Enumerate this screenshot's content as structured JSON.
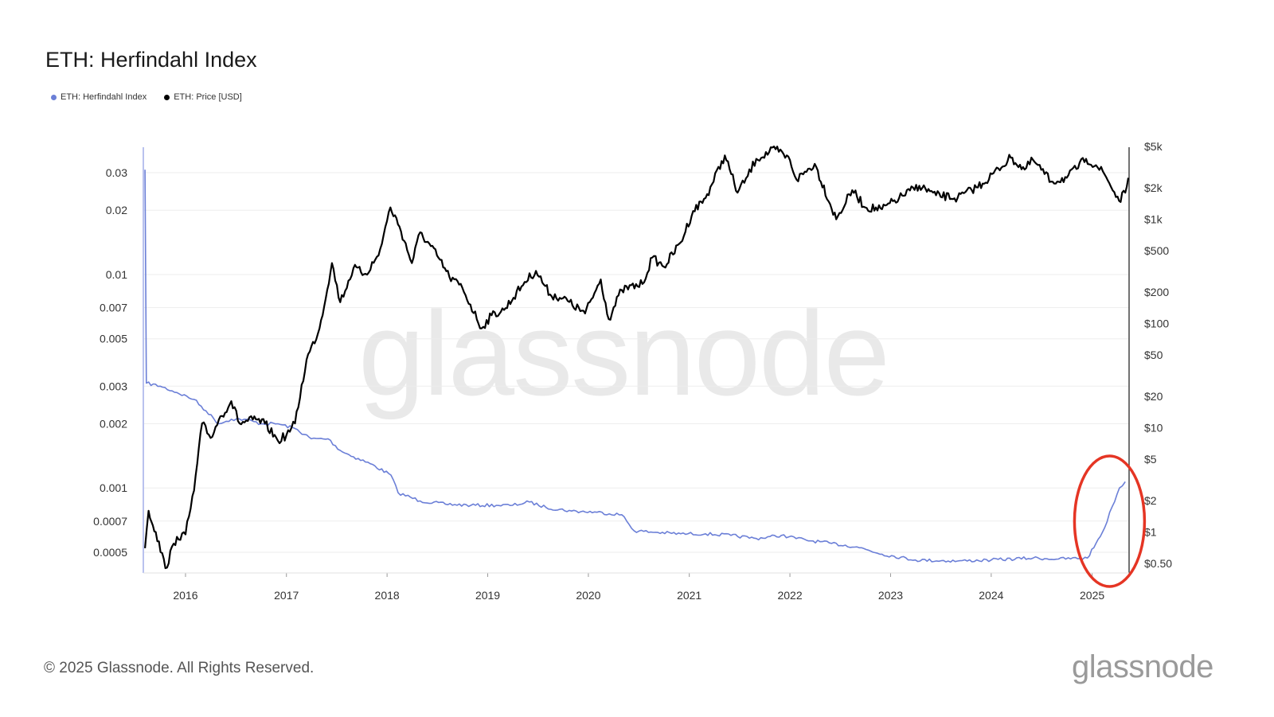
{
  "header": {
    "title": "ETH: Herfindahl Index"
  },
  "watermark": "glassnode",
  "footer": {
    "copyright": "© 2025 Glassnode. All Rights Reserved.",
    "logo": "glassnode"
  },
  "colors": {
    "index": "#6b7fd7",
    "price": "#000000",
    "annotation": "#e53524",
    "axis": "#333333",
    "grid": "#eeeeee"
  },
  "chart_data": {
    "type": "line",
    "title": "ETH: Herfindahl Index",
    "legend_placement": "top-left",
    "grid": true,
    "x_ticks": [
      "2016",
      "2017",
      "2018",
      "2019",
      "2020",
      "2021",
      "2022",
      "2023",
      "2024",
      "2025"
    ],
    "xlim": [
      "2015-08-01",
      "2025-05-15"
    ],
    "y_left": {
      "scale": "log",
      "ticks": [
        0.03,
        0.02,
        0.01,
        0.007,
        0.005,
        0.003,
        0.002,
        0.001,
        0.0007,
        0.0005
      ],
      "tick_labels": [
        "0.03",
        "0.02",
        "0.01",
        "0.007",
        "0.005",
        "0.003",
        "0.002",
        "0.001",
        "0.0007",
        "0.0005"
      ]
    },
    "y_right": {
      "scale": "log",
      "ticks": [
        5000,
        2000,
        1000,
        500,
        200,
        100,
        50,
        20,
        10,
        5,
        2,
        1,
        0.5
      ],
      "tick_labels": [
        "$5k",
        "$2k",
        "$1k",
        "$500",
        "$200",
        "$100",
        "$50",
        "$20",
        "$10",
        "$5",
        "$2",
        "$1",
        "$0.50"
      ]
    },
    "annotation": {
      "shape": "ellipse",
      "color": "#e53524",
      "around": "Herfindahl Index rise in 2025"
    },
    "series": [
      {
        "name": "ETH: Herfindahl Index",
        "axis": "left",
        "color": "#6b7fd7",
        "points": [
          [
            "2015-08-07",
            0.031
          ],
          [
            "2015-08-12",
            0.0031
          ],
          [
            "2015-10-01",
            0.003
          ],
          [
            "2015-12-01",
            0.0028
          ],
          [
            "2016-02-01",
            0.0026
          ],
          [
            "2016-03-15",
            0.0023
          ],
          [
            "2016-05-01",
            0.002
          ],
          [
            "2016-06-15",
            0.0021
          ],
          [
            "2016-08-01",
            0.0021
          ],
          [
            "2016-10-01",
            0.002
          ],
          [
            "2016-12-01",
            0.002
          ],
          [
            "2017-02-01",
            0.0019
          ],
          [
            "2017-04-01",
            0.0017
          ],
          [
            "2017-06-01",
            0.0017
          ],
          [
            "2017-07-15",
            0.0015
          ],
          [
            "2017-09-01",
            0.0014
          ],
          [
            "2017-11-01",
            0.0013
          ],
          [
            "2018-01-15",
            0.00115
          ],
          [
            "2018-02-10",
            0.00095
          ],
          [
            "2018-05-01",
            0.00087
          ],
          [
            "2018-08-01",
            0.00084
          ],
          [
            "2018-11-01",
            0.00083
          ],
          [
            "2019-02-01",
            0.00083
          ],
          [
            "2019-04-01",
            0.00083
          ],
          [
            "2019-06-01",
            0.00086
          ],
          [
            "2019-08-01",
            0.00081
          ],
          [
            "2019-11-01",
            0.00078
          ],
          [
            "2020-02-01",
            0.00077
          ],
          [
            "2020-05-01",
            0.00075
          ],
          [
            "2020-06-15",
            0.00063
          ],
          [
            "2020-09-01",
            0.00062
          ],
          [
            "2020-12-01",
            0.00061
          ],
          [
            "2021-03-01",
            0.00061
          ],
          [
            "2021-06-01",
            0.0006
          ],
          [
            "2021-09-01",
            0.00058
          ],
          [
            "2021-12-01",
            0.0006
          ],
          [
            "2022-03-01",
            0.00057
          ],
          [
            "2022-06-01",
            0.00055
          ],
          [
            "2022-09-01",
            0.00053
          ],
          [
            "2022-12-01",
            0.00049
          ],
          [
            "2023-04-01",
            0.00046
          ],
          [
            "2023-09-01",
            0.000455
          ],
          [
            "2024-01-01",
            0.00046
          ],
          [
            "2024-06-01",
            0.00047
          ],
          [
            "2024-09-01",
            0.000465
          ],
          [
            "2024-12-15",
            0.00047
          ],
          [
            "2025-01-15",
            0.00055
          ],
          [
            "2025-02-15",
            0.00065
          ],
          [
            "2025-03-15",
            0.00082
          ],
          [
            "2025-04-10",
            0.001
          ],
          [
            "2025-05-01",
            0.00107
          ]
        ]
      },
      {
        "name": "ETH: Price [USD]",
        "axis": "right",
        "color": "#000000",
        "points": [
          [
            "2015-08-07",
            0.7
          ],
          [
            "2015-08-20",
            1.6
          ],
          [
            "2015-09-15",
            1.0
          ],
          [
            "2015-10-20",
            0.45
          ],
          [
            "2015-12-01",
            0.9
          ],
          [
            "2016-01-01",
            0.95
          ],
          [
            "2016-02-01",
            2.5
          ],
          [
            "2016-03-01",
            11
          ],
          [
            "2016-04-01",
            8
          ],
          [
            "2016-05-01",
            12
          ],
          [
            "2016-06-15",
            18
          ],
          [
            "2016-07-15",
            11
          ],
          [
            "2016-09-01",
            12
          ],
          [
            "2016-10-15",
            11
          ],
          [
            "2016-12-01",
            7.5
          ],
          [
            "2017-01-01",
            8.5
          ],
          [
            "2017-02-01",
            11
          ],
          [
            "2017-03-15",
            45
          ],
          [
            "2017-05-01",
            90
          ],
          [
            "2017-06-15",
            380
          ],
          [
            "2017-07-15",
            160
          ],
          [
            "2017-09-01",
            340
          ],
          [
            "2017-10-15",
            300
          ],
          [
            "2017-12-01",
            450
          ],
          [
            "2018-01-13",
            1300
          ],
          [
            "2018-02-15",
            850
          ],
          [
            "2018-04-01",
            380
          ],
          [
            "2018-05-01",
            750
          ],
          [
            "2018-07-01",
            450
          ],
          [
            "2018-08-15",
            280
          ],
          [
            "2018-10-01",
            220
          ],
          [
            "2018-12-10",
            90
          ],
          [
            "2019-01-15",
            120
          ],
          [
            "2019-03-01",
            135
          ],
          [
            "2019-05-15",
            250
          ],
          [
            "2019-06-25",
            320
          ],
          [
            "2019-08-15",
            190
          ],
          [
            "2019-10-01",
            175
          ],
          [
            "2019-12-20",
            125
          ],
          [
            "2020-02-15",
            265
          ],
          [
            "2020-03-15",
            110
          ],
          [
            "2020-05-01",
            210
          ],
          [
            "2020-07-15",
            240
          ],
          [
            "2020-08-20",
            430
          ],
          [
            "2020-10-01",
            350
          ],
          [
            "2020-12-01",
            600
          ],
          [
            "2021-01-15",
            1200
          ],
          [
            "2021-03-01",
            1600
          ],
          [
            "2021-05-10",
            4100
          ],
          [
            "2021-06-25",
            1800
          ],
          [
            "2021-08-01",
            2600
          ],
          [
            "2021-09-01",
            3800
          ],
          [
            "2021-11-10",
            4700
          ],
          [
            "2022-01-01",
            3700
          ],
          [
            "2022-01-25",
            2400
          ],
          [
            "2022-04-01",
            3400
          ],
          [
            "2022-06-18",
            1000
          ],
          [
            "2022-08-15",
            1900
          ],
          [
            "2022-10-01",
            1300
          ],
          [
            "2022-12-01",
            1250
          ],
          [
            "2023-02-01",
            1600
          ],
          [
            "2023-04-15",
            2100
          ],
          [
            "2023-06-15",
            1700
          ],
          [
            "2023-09-01",
            1600
          ],
          [
            "2023-12-01",
            2200
          ],
          [
            "2024-03-12",
            3900
          ],
          [
            "2024-05-01",
            3000
          ],
          [
            "2024-06-01",
            3700
          ],
          [
            "2024-08-05",
            2300
          ],
          [
            "2024-10-01",
            2500
          ],
          [
            "2024-12-10",
            3800
          ],
          [
            "2025-01-15",
            3300
          ],
          [
            "2025-02-15",
            2700
          ],
          [
            "2025-04-09",
            1500
          ],
          [
            "2025-05-01",
            1800
          ],
          [
            "2025-05-12",
            2500
          ]
        ]
      }
    ]
  }
}
